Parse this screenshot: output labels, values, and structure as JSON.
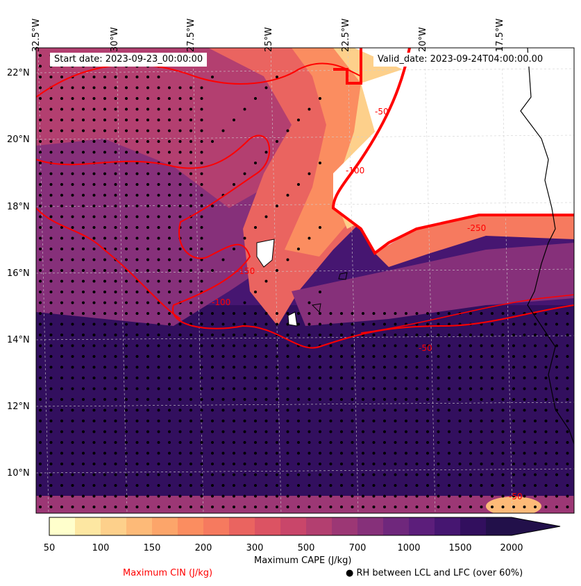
{
  "map": {
    "start_label": "Start date: 2023-09-23_00:00:00",
    "valid_label": "Valid_date: 2023-09-24T04:00:00.00",
    "lon_ticks": [
      "32.5°W",
      "30°W",
      "27.5°W",
      "25°W",
      "22.5°W",
      "20°W",
      "17.5°W"
    ],
    "lat_ticks": [
      "22°N",
      "20°N",
      "18°N",
      "16°N",
      "14°N",
      "12°N",
      "10°N"
    ],
    "cin_contour_labels": [
      "-100",
      "-50",
      "-150",
      "-250",
      "-50",
      "-100",
      "-50"
    ],
    "colors": {
      "cin_contour": "#ff0000",
      "coast": "#000000",
      "no_cape": "#ffffff",
      "palette": [
        "#ffffcc",
        "#fde7a2",
        "#fdd08b",
        "#fdba78",
        "#fca56a",
        "#fb8d60",
        "#f67a5f",
        "#ea6460",
        "#dc5363",
        "#c9466a",
        "#b33f70",
        "#9c3775",
        "#86307a",
        "#6f277c",
        "#5c1e7b",
        "#461671",
        "#320f5e",
        "#22104a"
      ]
    }
  },
  "colorbar": {
    "ticks": [
      "50",
      "100",
      "150",
      "200",
      "300",
      "500",
      "700",
      "1000",
      "1500",
      "2000"
    ],
    "label": "Maximum CAPE (J/kg)"
  },
  "legend": {
    "cin_label": "Maximum CIN (J/kg)",
    "rh_label": "● RH between LCL and LFC (over 60%)"
  }
}
